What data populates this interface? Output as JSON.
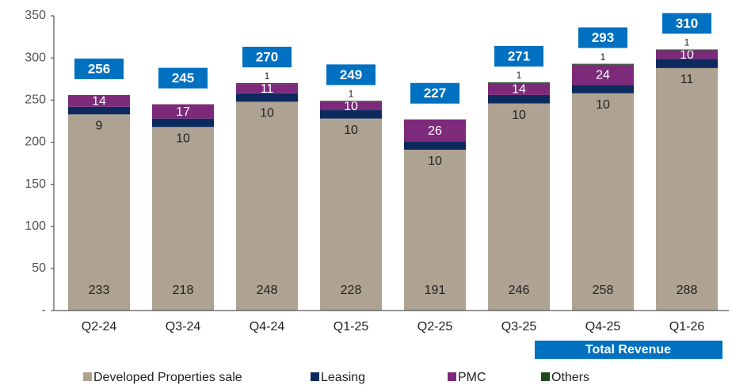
{
  "chart_data": {
    "type": "stacked_bar",
    "categories": [
      "Q2-24",
      "Q3-24",
      "Q4-24",
      "Q1-25",
      "Q2-25",
      "Q3-25",
      "Q4-25",
      "Q1-26"
    ],
    "series": [
      {
        "name": "Developed Properties sale",
        "color": "#aea392",
        "values": [
          233,
          218,
          248,
          228,
          191,
          246,
          258,
          288
        ]
      },
      {
        "name": "Leasing",
        "color": "#0c2a5e",
        "values": [
          9,
          10,
          10,
          10,
          10,
          10,
          10,
          11
        ]
      },
      {
        "name": "PMC",
        "color": "#7d2a7b",
        "values": [
          14,
          17,
          11,
          10,
          26,
          14,
          24,
          10
        ]
      },
      {
        "name": "Others",
        "color": "#1f4a1f",
        "values": [
          null,
          null,
          1,
          1,
          null,
          1,
          1,
          1
        ]
      }
    ],
    "totals_label": "Total Revenue",
    "totals": [
      256,
      245,
      270,
      249,
      227,
      271,
      293,
      310
    ],
    "totals_color": "#0070c0",
    "ylim": [
      0,
      350
    ],
    "yticks": [
      {
        "value": 0,
        "label": "-"
      },
      50,
      100,
      150,
      200,
      250,
      300,
      350
    ],
    "grid": false
  }
}
